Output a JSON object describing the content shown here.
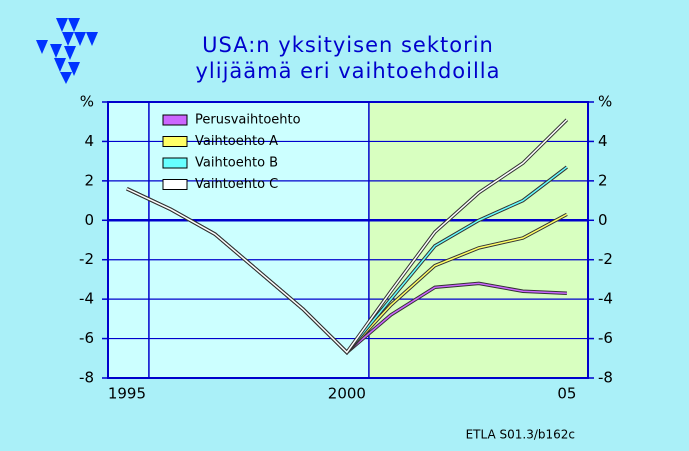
{
  "chart_data": {
    "type": "line",
    "title": [
      "USA:n yksityisen sektorin",
      "ylijäämä eri vaihtoehdoilla"
    ],
    "x": [
      1995,
      1996,
      1997,
      1998,
      1999,
      2000,
      2001,
      2002,
      2003,
      2004,
      2005
    ],
    "series": [
      {
        "name": "Perusvaihtoehto",
        "color": "#cc66ff",
        "values": [
          1.6,
          0.55,
          -0.7,
          -2.6,
          -4.5,
          -6.7,
          -4.8,
          -3.4,
          -3.2,
          -3.6,
          -3.7
        ]
      },
      {
        "name": "Vaihtoehto A",
        "color": "#ffff66",
        "values": [
          1.6,
          0.55,
          -0.7,
          -2.6,
          -4.5,
          -6.7,
          -4.3,
          -2.3,
          -1.4,
          -0.9,
          0.3
        ]
      },
      {
        "name": "Vaihtoehto B",
        "color": "#66ffff",
        "values": [
          1.6,
          0.55,
          -0.7,
          -2.6,
          -4.5,
          -6.7,
          -4.0,
          -1.3,
          0,
          1.0,
          2.7
        ]
      },
      {
        "name": "Vaihtoehto C",
        "color": "#ffffff",
        "values": [
          1.6,
          0.55,
          -0.7,
          -2.6,
          -4.5,
          -6.7,
          -3.6,
          -0.6,
          1.4,
          2.9,
          5.1
        ]
      }
    ],
    "xlim": [
      1994.57,
      2005.48
    ],
    "xticks": [
      1995,
      2000,
      {
        "value": 2005,
        "label": "05"
      }
    ],
    "xgrid": [
      1995.5,
      2000.5
    ],
    "shaded_from": 2000.5,
    "ylim": [
      -8,
      6
    ],
    "yticks": [
      -8,
      -6,
      -4,
      -2,
      0,
      2,
      4,
      {
        "value": 6,
        "label": "%"
      }
    ],
    "grid": true,
    "legend": "upper-left",
    "source": "ETLA S01.3/b162c"
  }
}
